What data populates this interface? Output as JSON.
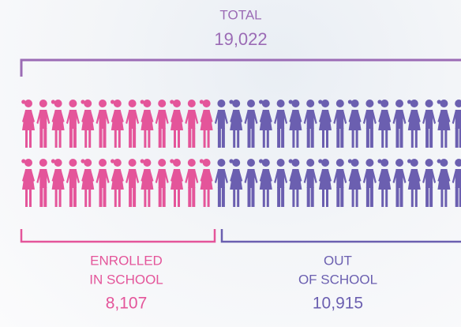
{
  "total": {
    "label": "TOTAL",
    "value": "19,022"
  },
  "enrolled": {
    "label_lines": [
      "ENROLLED",
      "IN SCHOOL"
    ],
    "value": "8,107"
  },
  "out_of_school": {
    "label_lines": [
      "OUT",
      "OF SCHOOL"
    ],
    "value": "10,915"
  }
}
